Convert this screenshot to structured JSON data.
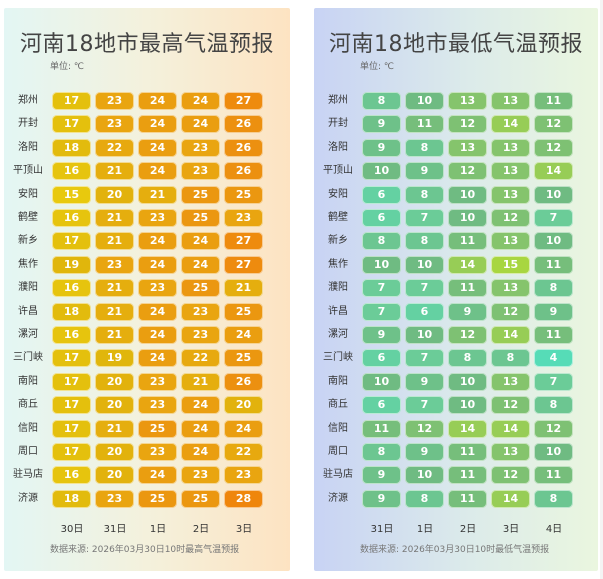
{
  "chart_data": [
    {
      "type": "table",
      "title": "河南18地市最高气温预报",
      "unit_label": "单位: ℃",
      "source": "数据来源: 2026年03月30日10时最高气温预报",
      "days": [
        "30日",
        "31日",
        "1日",
        "2日",
        "3日"
      ],
      "cities": [
        "郑州",
        "开封",
        "洛阳",
        "平顶山",
        "安阳",
        "鹤壁",
        "新乡",
        "焦作",
        "濮阳",
        "许昌",
        "漯河",
        "三门峡",
        "南阳",
        "商丘",
        "信阳",
        "周口",
        "驻马店",
        "济源"
      ],
      "values": [
        [
          17,
          23,
          24,
          24,
          27
        ],
        [
          17,
          23,
          24,
          24,
          26
        ],
        [
          18,
          22,
          24,
          23,
          26
        ],
        [
          16,
          21,
          24,
          23,
          26
        ],
        [
          15,
          20,
          21,
          25,
          25
        ],
        [
          16,
          21,
          23,
          25,
          23
        ],
        [
          17,
          21,
          24,
          24,
          27
        ],
        [
          19,
          23,
          24,
          24,
          27
        ],
        [
          16,
          21,
          23,
          25,
          21
        ],
        [
          18,
          21,
          24,
          23,
          25
        ],
        [
          16,
          21,
          24,
          23,
          24
        ],
        [
          17,
          19,
          24,
          22,
          25
        ],
        [
          17,
          20,
          23,
          21,
          26
        ],
        [
          17,
          20,
          23,
          24,
          20
        ],
        [
          17,
          21,
          25,
          24,
          24
        ],
        [
          17,
          20,
          23,
          24,
          22
        ],
        [
          16,
          20,
          24,
          23,
          23
        ],
        [
          18,
          23,
          25,
          25,
          28
        ]
      ]
    },
    {
      "type": "table",
      "title": "河南18地市最低气温预报",
      "unit_label": "单位: ℃",
      "source": "数据来源: 2026年03月30日10时最低气温预报",
      "days": [
        "31日",
        "1日",
        "2日",
        "3日",
        "4日"
      ],
      "cities": [
        "郑州",
        "开封",
        "洛阳",
        "平顶山",
        "安阳",
        "鹤壁",
        "新乡",
        "焦作",
        "濮阳",
        "许昌",
        "漯河",
        "三门峡",
        "南阳",
        "商丘",
        "信阳",
        "周口",
        "驻马店",
        "济源"
      ],
      "values": [
        [
          8,
          10,
          13,
          13,
          11
        ],
        [
          9,
          11,
          12,
          14,
          12
        ],
        [
          9,
          8,
          13,
          13,
          12
        ],
        [
          10,
          9,
          12,
          13,
          14
        ],
        [
          6,
          8,
          10,
          13,
          10
        ],
        [
          6,
          7,
          10,
          12,
          7
        ],
        [
          8,
          8,
          11,
          13,
          10
        ],
        [
          10,
          10,
          14,
          15,
          11
        ],
        [
          7,
          7,
          11,
          13,
          8
        ],
        [
          7,
          6,
          9,
          12,
          9
        ],
        [
          9,
          10,
          12,
          14,
          11
        ],
        [
          6,
          7,
          8,
          8,
          4
        ],
        [
          10,
          9,
          10,
          13,
          7
        ],
        [
          6,
          7,
          10,
          12,
          8
        ],
        [
          11,
          12,
          14,
          14,
          12
        ],
        [
          8,
          9,
          11,
          13,
          10
        ],
        [
          9,
          10,
          11,
          12,
          11
        ],
        [
          9,
          8,
          11,
          14,
          8
        ]
      ]
    }
  ]
}
